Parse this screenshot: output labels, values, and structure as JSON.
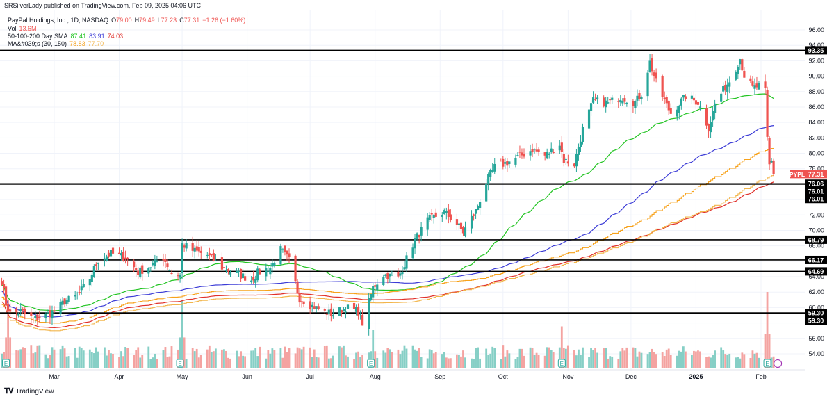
{
  "header": {
    "published": "SRSilverLady published on TradingView.com, Feb 09, 2025 04:06 UTC"
  },
  "legend": {
    "title": "PayPal Holdings, Inc., 1D, NASDAQ",
    "o_label": "O",
    "o": "79.00",
    "h_label": "H",
    "h": "79.49",
    "l_label": "L",
    "l": "77.23",
    "c_label": "C",
    "c": "77.31",
    "change": "−1.26 (−1.60%)",
    "vol_label": "Vol",
    "vol": "13.6M",
    "sma_label": "50-100-200 Day SMA",
    "sma50": "87.41",
    "sma100": "83.91",
    "sma200": "74.03",
    "ma_label": "MA&#039;s (30, 150)",
    "ma30": "78.83",
    "ma150": "77.70"
  },
  "footer": {
    "brand": "TradingView"
  },
  "colors": {
    "up": "#26a69a",
    "down": "#ef5350",
    "up_vol": "#86cfc6",
    "down_vol": "#f4a3a1",
    "sma50": "#21c421",
    "sma100": "#3b3bd6",
    "sma200": "#e0302a",
    "ma30": "#f7a21b",
    "ma150": "#f2b54b",
    "price_tag": "#ef5350"
  },
  "chart_data": {
    "type": "candlestick",
    "symbol": "PYPL",
    "last_price": "77.31",
    "ylim": [
      52.5,
      97.5
    ],
    "y_ticks": [
      "54.00",
      "56.00",
      "58.00",
      "60.00",
      "62.00",
      "64.00",
      "66.00",
      "68.00",
      "70.00",
      "72.00",
      "74.00",
      "76.00",
      "78.00",
      "80.00",
      "82.00",
      "84.00",
      "86.00",
      "88.00",
      "90.00",
      "92.00",
      "94.00",
      "96.00"
    ],
    "horizontal_levels": [
      {
        "label": "93.35",
        "value": 93.35
      },
      {
        "label": "76.06",
        "value": 76.06
      },
      {
        "label": "76.01",
        "value": 76.01
      },
      {
        "label": "76.01",
        "value": 76.01
      },
      {
        "label": "68.79",
        "value": 68.79
      },
      {
        "label": "66.17",
        "value": 66.17
      },
      {
        "label": "64.69",
        "value": 64.69
      },
      {
        "label": "59.30",
        "value": 59.3
      },
      {
        "label": "59.30",
        "value": 59.3
      }
    ],
    "months": [
      {
        "label": "Mar",
        "date": "2024-03-01"
      },
      {
        "label": "Apr",
        "date": "2024-04-01"
      },
      {
        "label": "May",
        "date": "2024-05-01"
      },
      {
        "label": "Jun",
        "date": "2024-06-01"
      },
      {
        "label": "Jul",
        "date": "2024-07-01"
      },
      {
        "label": "Aug",
        "date": "2024-08-01"
      },
      {
        "label": "Sep",
        "date": "2024-09-01"
      },
      {
        "label": "Oct",
        "date": "2024-10-01"
      },
      {
        "label": "Nov",
        "date": "2024-11-01"
      },
      {
        "label": "Dec",
        "date": "2024-12-01"
      },
      {
        "label": "2025",
        "date": "2025-01-01"
      },
      {
        "label": "Feb",
        "date": "2025-02-01"
      }
    ],
    "earnings_markers": [
      "2024-02-07",
      "2024-04-30",
      "2024-07-30",
      "2024-10-29",
      "2025-02-04"
    ],
    "close_anchors": [
      [
        "2024-02-05",
        63.5
      ],
      [
        "2024-02-07",
        60.5
      ],
      [
        "2024-02-09",
        59.2
      ],
      [
        "2024-02-14",
        59.5
      ],
      [
        "2024-02-20",
        58.5
      ],
      [
        "2024-02-26",
        59.0
      ],
      [
        "2024-03-01",
        59.5
      ],
      [
        "2024-03-06",
        60.8
      ],
      [
        "2024-03-12",
        61.5
      ],
      [
        "2024-03-18",
        63.8
      ],
      [
        "2024-03-22",
        66.2
      ],
      [
        "2024-03-28",
        67.0
      ],
      [
        "2024-04-04",
        66.5
      ],
      [
        "2024-04-10",
        64.6
      ],
      [
        "2024-04-16",
        65.4
      ],
      [
        "2024-04-22",
        66.5
      ],
      [
        "2024-04-26",
        64.5
      ],
      [
        "2024-04-30",
        64.2
      ],
      [
        "2024-05-01",
        68.2
      ],
      [
        "2024-05-06",
        67.4
      ],
      [
        "2024-05-13",
        66.8
      ],
      [
        "2024-05-20",
        65.2
      ],
      [
        "2024-05-28",
        64.3
      ],
      [
        "2024-06-03",
        63.6
      ],
      [
        "2024-06-06",
        64.5
      ],
      [
        "2024-06-12",
        65.2
      ],
      [
        "2024-06-17",
        67.5
      ],
      [
        "2024-06-21",
        66.1
      ],
      [
        "2024-06-26",
        61.2
      ],
      [
        "2024-07-02",
        60.2
      ],
      [
        "2024-07-08",
        59.4
      ],
      [
        "2024-07-12",
        59.2
      ],
      [
        "2024-07-18",
        60.0
      ],
      [
        "2024-07-24",
        59.5
      ],
      [
        "2024-07-26",
        58.0
      ],
      [
        "2024-07-31",
        62.6
      ],
      [
        "2024-08-05",
        64.3
      ],
      [
        "2024-08-12",
        63.8
      ],
      [
        "2024-08-16",
        66.3
      ],
      [
        "2024-08-20",
        68.8
      ],
      [
        "2024-08-26",
        71.3
      ],
      [
        "2024-09-03",
        72.4
      ],
      [
        "2024-09-09",
        70.8
      ],
      [
        "2024-09-12",
        69.8
      ],
      [
        "2024-09-18",
        72.5
      ],
      [
        "2024-09-23",
        76.3
      ],
      [
        "2024-09-27",
        78.2
      ],
      [
        "2024-10-03",
        78.8
      ],
      [
        "2024-10-09",
        79.6
      ],
      [
        "2024-10-15",
        80.5
      ],
      [
        "2024-10-21",
        79.7
      ],
      [
        "2024-10-28",
        81.2
      ],
      [
        "2024-10-30",
        79.1
      ],
      [
        "2024-11-04",
        78.6
      ],
      [
        "2024-11-08",
        83.1
      ],
      [
        "2024-11-13",
        86.8
      ],
      [
        "2024-11-20",
        86.5
      ],
      [
        "2024-11-26",
        87.3
      ],
      [
        "2024-12-03",
        86.6
      ],
      [
        "2024-12-06",
        87.7
      ],
      [
        "2024-12-10",
        91.8
      ],
      [
        "2024-12-13",
        89.2
      ],
      [
        "2024-12-18",
        86.2
      ],
      [
        "2024-12-20",
        85.2
      ],
      [
        "2024-12-27",
        87.4
      ],
      [
        "2025-01-02",
        86.6
      ],
      [
        "2025-01-07",
        83.3
      ],
      [
        "2025-01-10",
        86.4
      ],
      [
        "2025-01-14",
        88.2
      ],
      [
        "2025-01-17",
        89.4
      ],
      [
        "2025-01-22",
        92.3
      ],
      [
        "2025-01-24",
        90.1
      ],
      [
        "2025-01-28",
        88.5
      ],
      [
        "2025-01-31",
        88.7
      ],
      [
        "2025-02-03",
        88.0
      ],
      [
        "2025-02-04",
        81.8
      ],
      [
        "2025-02-05",
        78.4
      ],
      [
        "2025-02-06",
        78.9
      ],
      [
        "2025-02-07",
        77.31
      ]
    ],
    "volume_spikes": [
      {
        "date": "2024-02-08",
        "level": 0.9
      },
      {
        "date": "2024-05-01",
        "level": 0.9
      },
      {
        "date": "2024-07-31",
        "level": 0.5
      },
      {
        "date": "2024-10-29",
        "level": 0.55
      },
      {
        "date": "2025-02-04",
        "level": 1.0
      }
    ]
  }
}
